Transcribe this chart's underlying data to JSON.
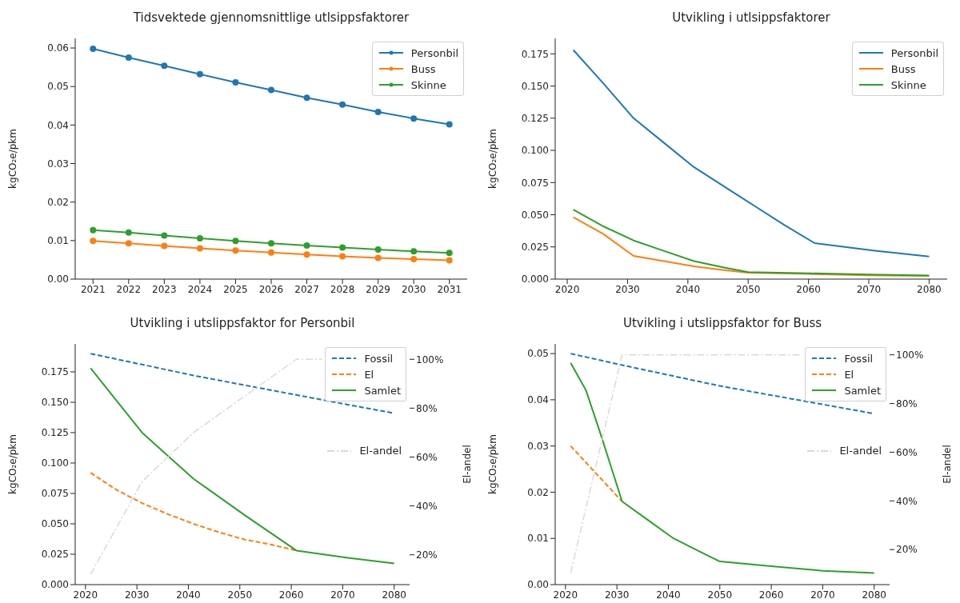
{
  "chart_data": [
    {
      "type": "line",
      "title": "Tidsvektede gjennomsnittlige utlsippsfaktorer",
      "ylabel": "kgCO₂e/pkm",
      "marker": "circle",
      "legend": "top right",
      "xlim": [
        2020.5,
        2031.5
      ],
      "xticks": [
        2021,
        2022,
        2023,
        2024,
        2025,
        2026,
        2027,
        2028,
        2029,
        2030,
        2031
      ],
      "ylim": [
        0,
        0.0625
      ],
      "yticks": [
        {
          "value": 0,
          "label": "0.00"
        },
        0.01,
        0.02,
        0.03,
        0.04,
        0.05,
        0.06
      ],
      "x": [
        2021,
        2022,
        2023,
        2024,
        2025,
        2026,
        2027,
        2028,
        2029,
        2030,
        2031
      ],
      "series": [
        {
          "name": "Personbil",
          "color": "#1f77b4",
          "values": [
            0.0598,
            0.0575,
            0.0554,
            0.0532,
            0.0511,
            0.0491,
            0.0471,
            0.0453,
            0.0434,
            0.0417,
            0.0402
          ]
        },
        {
          "name": "Buss",
          "color": "#ff7f0e",
          "values": [
            0.0099,
            0.0093,
            0.0086,
            0.008,
            0.0074,
            0.0069,
            0.0064,
            0.0059,
            0.0055,
            0.0052,
            0.0049
          ]
        },
        {
          "name": "Skinne",
          "color": "#2ca02c",
          "values": [
            0.0127,
            0.0121,
            0.0113,
            0.0106,
            0.0099,
            0.0093,
            0.0087,
            0.0082,
            0.0077,
            0.0072,
            0.0068
          ]
        }
      ]
    },
    {
      "type": "line",
      "title": "Utvikling i utlsippsfaktorer",
      "ylabel": "kgCO₂e/pkm",
      "legend": "top right",
      "xlim": [
        2018,
        2083
      ],
      "xticks": [
        2020,
        2030,
        2040,
        2050,
        2060,
        2070,
        2080
      ],
      "ylim": [
        0,
        0.187
      ],
      "yticks": [
        {
          "value": 0,
          "label": "0.000"
        },
        0.025,
        {
          "value": 0.05,
          "label": "0.050"
        },
        {
          "value": 0.075,
          "label": "0.075"
        },
        {
          "value": 0.1,
          "label": "0.100"
        },
        0.125,
        {
          "value": 0.15,
          "label": "0.150"
        },
        0.175
      ],
      "series": [
        {
          "name": "Personbil",
          "color": "#1f77b4",
          "x": [
            2021,
            2026,
            2031,
            2036,
            2041,
            2046,
            2051,
            2056,
            2061,
            2066,
            2071,
            2076,
            2080
          ],
          "values": [
            0.178,
            0.152,
            0.125,
            0.106,
            0.087,
            0.072,
            0.057,
            0.042,
            0.028,
            0.025,
            0.022,
            0.0195,
            0.0175
          ]
        },
        {
          "name": "Buss",
          "color": "#ff7f0e",
          "x": [
            2021,
            2026,
            2031,
            2036,
            2041,
            2046,
            2050,
            2060,
            2070,
            2080
          ],
          "values": [
            0.048,
            0.035,
            0.018,
            0.014,
            0.01,
            0.007,
            0.005,
            0.004,
            0.003,
            0.0025
          ]
        },
        {
          "name": "Skinne",
          "color": "#2ca02c",
          "x": [
            2021,
            2026,
            2031,
            2036,
            2041,
            2046,
            2050,
            2060,
            2070,
            2080
          ],
          "values": [
            0.054,
            0.041,
            0.03,
            0.022,
            0.014,
            0.009,
            0.0055,
            0.0045,
            0.0035,
            0.0028
          ]
        }
      ]
    },
    {
      "type": "line",
      "title": "Utvikling i utslippsfaktor for Personbil",
      "ylabel": "kgCO₂e/pkm",
      "y2label": "El-andel",
      "legend": "top right",
      "xlim": [
        2018,
        2083
      ],
      "xticks": [
        2020,
        2030,
        2040,
        2050,
        2060,
        2070,
        2080
      ],
      "ylim": [
        0,
        0.198
      ],
      "yticks": [
        {
          "value": 0,
          "label": "0.000"
        },
        0.025,
        {
          "value": 0.05,
          "label": "0.050"
        },
        {
          "value": 0.075,
          "label": "0.075"
        },
        {
          "value": 0.1,
          "label": "0.100"
        },
        0.125,
        {
          "value": 0.15,
          "label": "0.150"
        },
        0.175
      ],
      "y2lim": [
        7.8,
        106.3
      ],
      "y2ticks": [
        {
          "value": 20,
          "label": "20%"
        },
        {
          "value": 40,
          "label": "40%"
        },
        {
          "value": 60,
          "label": "60%"
        },
        {
          "value": 80,
          "label": "80%"
        },
        {
          "value": 100,
          "label": "100%"
        }
      ],
      "series": [
        {
          "name": "Fossil",
          "color": "#1f77b4",
          "line_style": "dashed",
          "x": [
            2021,
            2031,
            2041,
            2051,
            2061,
            2071,
            2080
          ],
          "values": [
            0.19,
            0.181,
            0.172,
            0.164,
            0.156,
            0.148,
            0.141
          ]
        },
        {
          "name": "El",
          "color": "#ff7f0e",
          "line_style": "dashed",
          "x": [
            2021,
            2026,
            2031,
            2036,
            2041,
            2046,
            2051,
            2056,
            2061
          ],
          "values": [
            0.092,
            0.078,
            0.067,
            0.058,
            0.05,
            0.043,
            0.037,
            0.033,
            0.028
          ]
        },
        {
          "name": "Samlet",
          "color": "#2ca02c",
          "line_style": "solid",
          "x": [
            2021,
            2031,
            2041,
            2051,
            2061,
            2071,
            2080
          ],
          "values": [
            0.178,
            0.125,
            0.087,
            0.057,
            0.028,
            0.022,
            0.0175
          ]
        },
        {
          "name": "El-andel",
          "color": "#d9d9d9",
          "line_style": "dashdot",
          "axis": "y2",
          "x": [
            2021,
            2031,
            2041,
            2051,
            2061,
            2066
          ],
          "values": [
            12,
            50,
            70,
            85,
            100,
            100
          ]
        }
      ]
    },
    {
      "type": "line",
      "title": "Utvikling i utslippsfaktor for Buss",
      "ylabel": "kgCO₂e/pkm",
      "y2label": "El-andel",
      "legend": "top right",
      "xlim": [
        2018,
        2083
      ],
      "xticks": [
        2020,
        2030,
        2040,
        2050,
        2060,
        2070,
        2080
      ],
      "ylim": [
        0,
        0.0521
      ],
      "yticks": [
        {
          "value": 0,
          "label": "0.00"
        },
        0.01,
        0.02,
        0.03,
        0.04,
        0.05
      ],
      "y2lim": [
        5.6,
        104.5
      ],
      "y2ticks": [
        {
          "value": 20,
          "label": "20%"
        },
        {
          "value": 40,
          "label": "40%"
        },
        {
          "value": 60,
          "label": "60%"
        },
        {
          "value": 80,
          "label": "80%"
        },
        {
          "value": 100,
          "label": "100%"
        }
      ],
      "series": [
        {
          "name": "Fossil",
          "color": "#1f77b4",
          "line_style": "dashed",
          "x": [
            2021,
            2031,
            2050,
            2080
          ],
          "values": [
            0.05,
            0.0475,
            0.043,
            0.037
          ]
        },
        {
          "name": "El",
          "color": "#ff7f0e",
          "line_style": "dashed",
          "x": [
            2021,
            2026,
            2031
          ],
          "values": [
            0.03,
            0.024,
            0.018
          ]
        },
        {
          "name": "Samlet",
          "color": "#2ca02c",
          "line_style": "solid",
          "x": [
            2021,
            2024,
            2027,
            2031,
            2036,
            2041,
            2046,
            2050,
            2060,
            2070,
            2080
          ],
          "values": [
            0.048,
            0.042,
            0.032,
            0.018,
            0.014,
            0.01,
            0.0072,
            0.005,
            0.004,
            0.003,
            0.0025
          ]
        },
        {
          "name": "El-andel",
          "color": "#d9d9d9",
          "line_style": "dashdot",
          "axis": "y2",
          "x": [
            2021,
            2031,
            2066
          ],
          "values": [
            10.4,
            100,
            100
          ]
        }
      ]
    }
  ]
}
